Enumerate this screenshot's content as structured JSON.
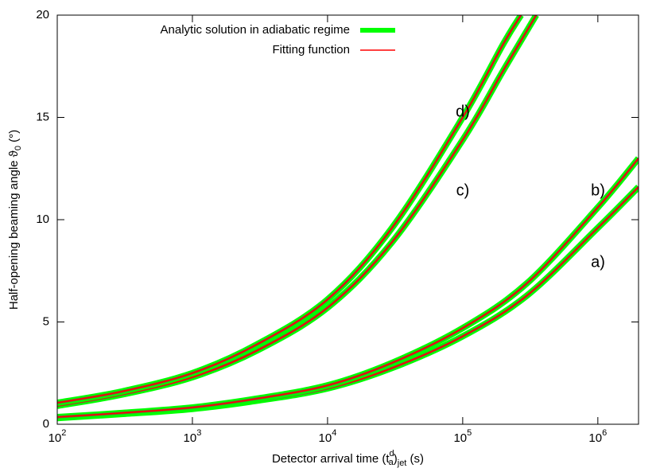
{
  "chart_data": {
    "type": "line",
    "xlabel_parts": [
      "Detector arrival time (t",
      "d",
      "a",
      ")",
      "jet",
      " (s)"
    ],
    "ylabel_parts": [
      "Half-opening beaming angle ϑ",
      "0",
      " (°)"
    ],
    "xscale": "log",
    "xlim": [
      100,
      2000000
    ],
    "ylim": [
      0,
      20
    ],
    "xticks": [
      {
        "value": 100,
        "label": "10",
        "sup": "2"
      },
      {
        "value": 1000,
        "label": "10",
        "sup": "3"
      },
      {
        "value": 10000,
        "label": "10",
        "sup": "4"
      },
      {
        "value": 100000,
        "label": "10",
        "sup": "5"
      },
      {
        "value": 1000000,
        "label": "10",
        "sup": "6"
      }
    ],
    "yticks": [
      0,
      5,
      10,
      15,
      20
    ],
    "legend": [
      {
        "name": "Analytic solution in adiabatic regime",
        "color": "#00ff00"
      },
      {
        "name": "Fitting function",
        "color": "#ff0000"
      }
    ],
    "curves": [
      {
        "label": "a)",
        "x": [
          100,
          300,
          1000,
          3000,
          10000,
          30000,
          100000,
          300000,
          1000000,
          2000000
        ],
        "values": [
          0.3,
          0.5,
          0.75,
          1.15,
          1.75,
          2.75,
          4.3,
          6.3,
          9.6,
          11.6
        ]
      },
      {
        "label": "b)",
        "x": [
          100,
          300,
          1000,
          3000,
          10000,
          30000,
          100000,
          300000,
          1000000,
          2000000
        ],
        "values": [
          0.35,
          0.55,
          0.82,
          1.25,
          1.9,
          3.0,
          4.7,
          6.9,
          10.6,
          13.0
        ]
      },
      {
        "label": "c)",
        "x": [
          100,
          300,
          1000,
          3000,
          10000,
          30000,
          100000,
          200000,
          350000
        ],
        "values": [
          0.9,
          1.45,
          2.3,
          3.6,
          5.7,
          8.9,
          13.9,
          17.3,
          20
        ]
      },
      {
        "label": "d)",
        "x": [
          100,
          300,
          1000,
          3000,
          10000,
          30000,
          100000,
          200000,
          270000
        ],
        "values": [
          1.05,
          1.6,
          2.5,
          3.9,
          6.1,
          9.6,
          15.0,
          18.6,
          20
        ]
      }
    ]
  }
}
